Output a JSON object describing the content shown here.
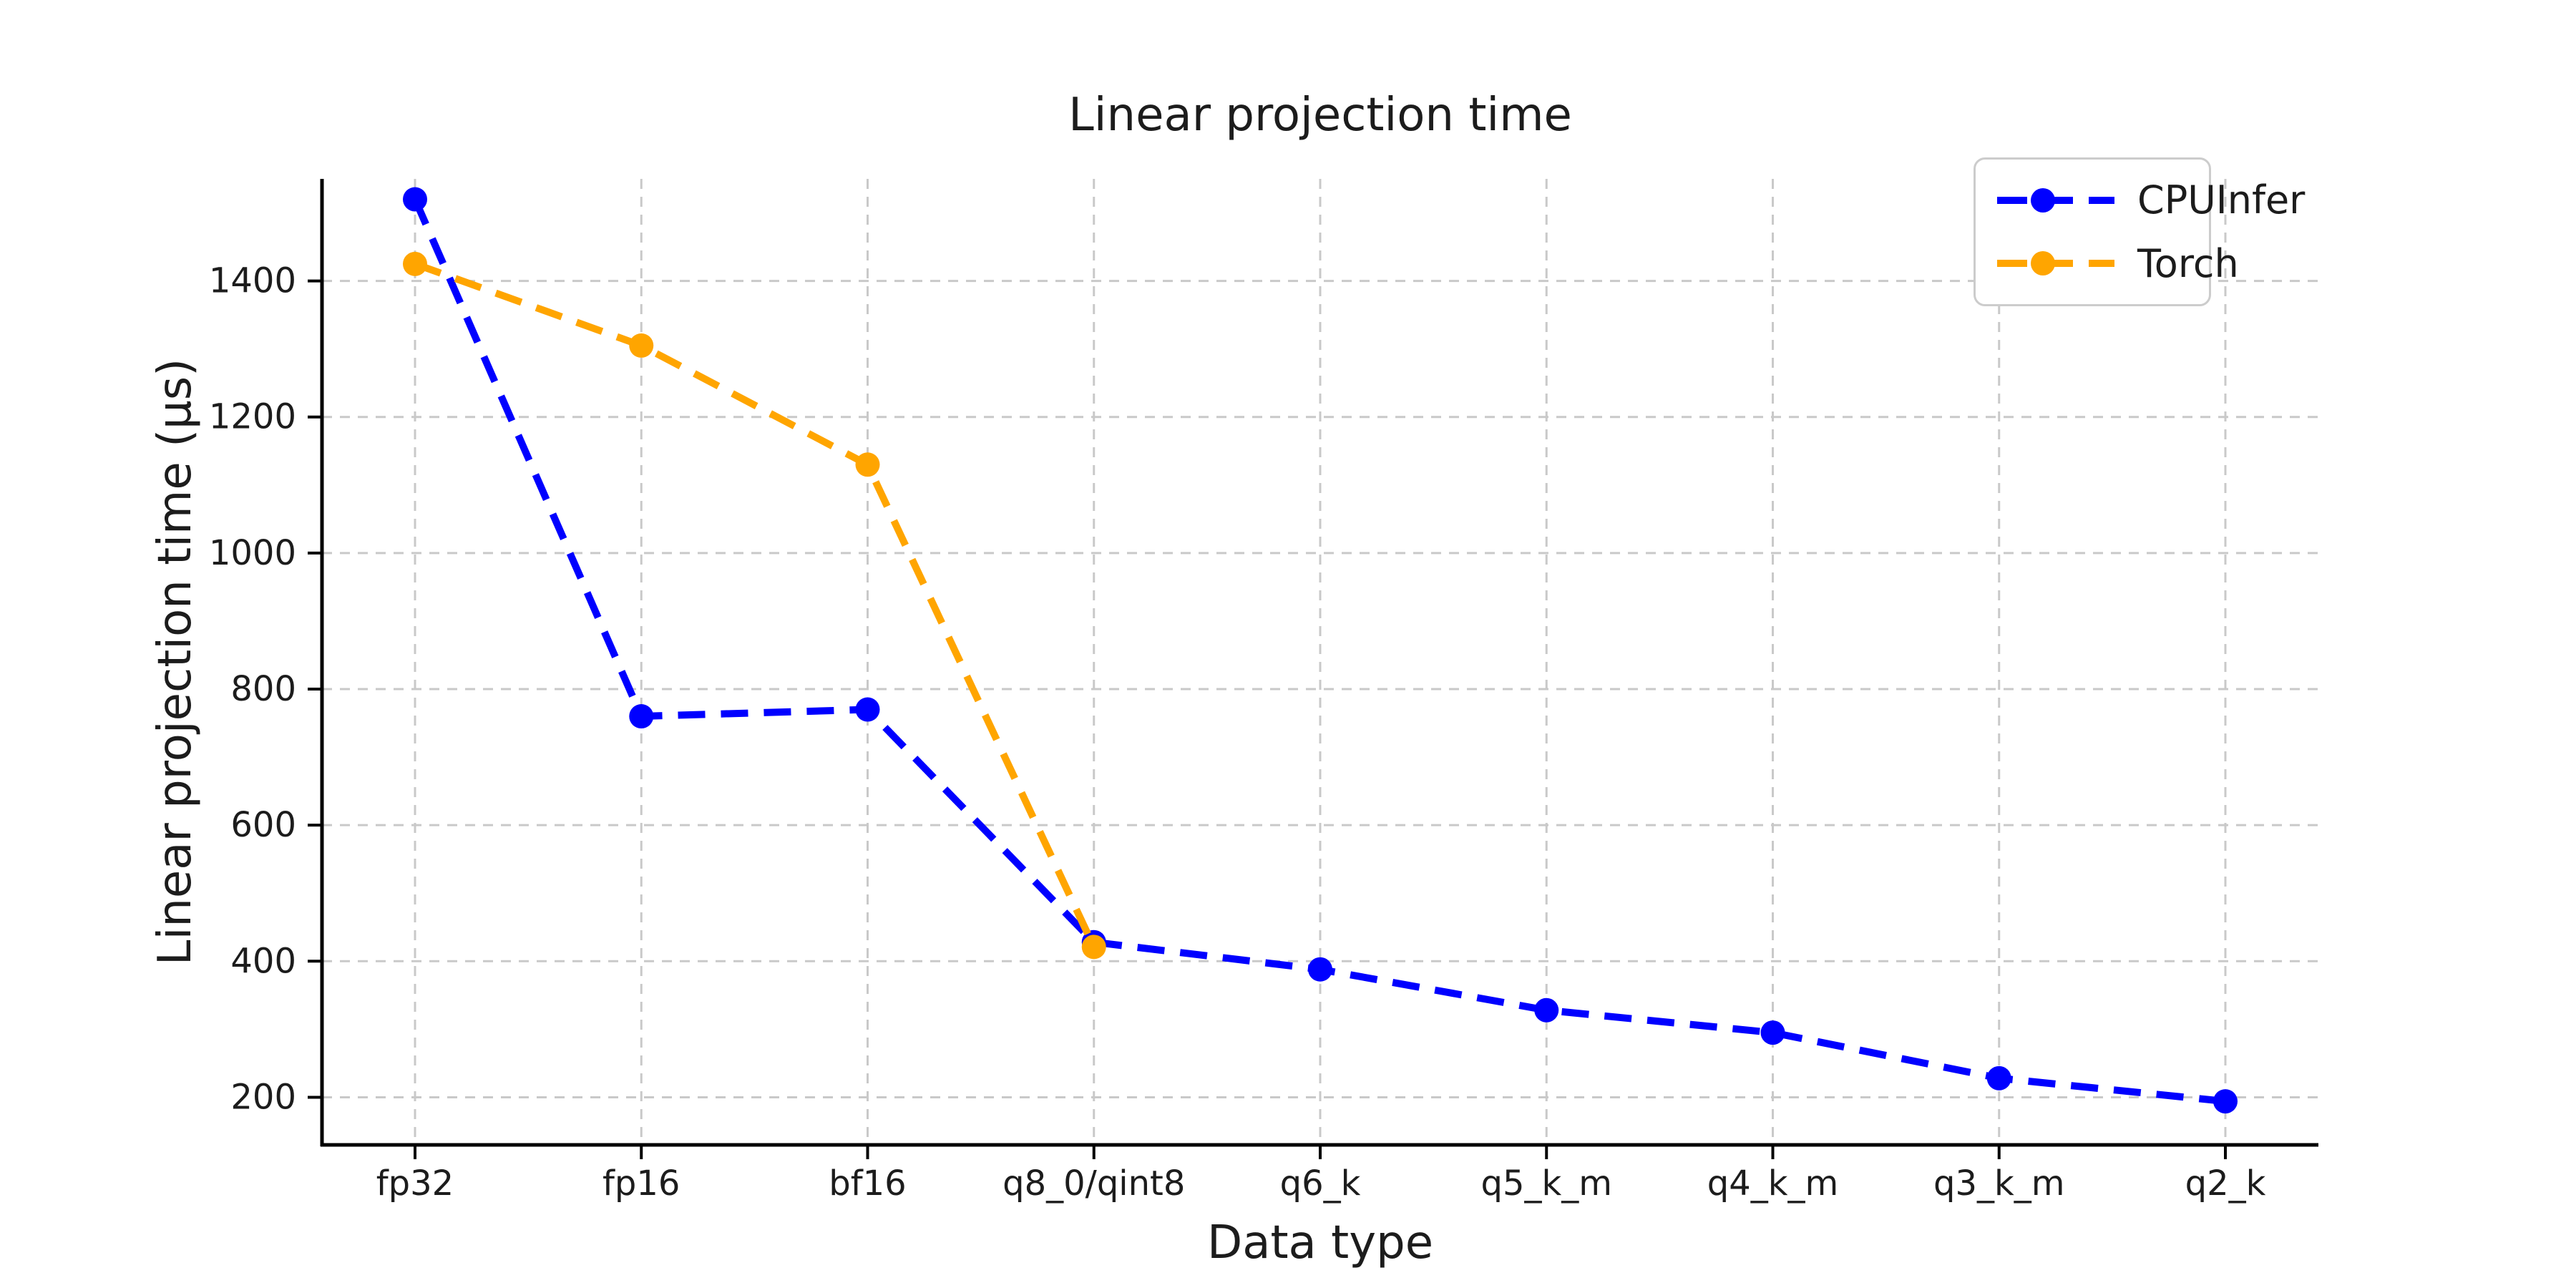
{
  "chart_data": {
    "type": "line",
    "title": "Linear projection time",
    "xlabel": "Data type",
    "ylabel": "Linear projection time (μs)",
    "categories": [
      "fp32",
      "fp16",
      "bf16",
      "q8_0/qint8",
      "q6_k",
      "q5_k_m",
      "q4_k_m",
      "q3_k_m",
      "q2_k"
    ],
    "yticks": [
      200,
      400,
      600,
      800,
      1000,
      1200,
      1400
    ],
    "ylim": [
      130,
      1550
    ],
    "grid": true,
    "grid_style": "dashed",
    "line_style": "dashed",
    "marker": "circle",
    "legend_position": "upper right",
    "series": [
      {
        "name": "CPUInfer",
        "color": "#0000ff",
        "values": [
          1520,
          760,
          770,
          428,
          388,
          328,
          295,
          228,
          194
        ]
      },
      {
        "name": "Torch",
        "color": "#ffa500",
        "values": [
          1425,
          1305,
          1130,
          421
        ]
      }
    ],
    "colors": {
      "background": "#ffffff",
      "grid": "#c9c9c9",
      "spine": "#000000",
      "text": "#1c1c1c",
      "legend_border": "#cccccc"
    }
  }
}
